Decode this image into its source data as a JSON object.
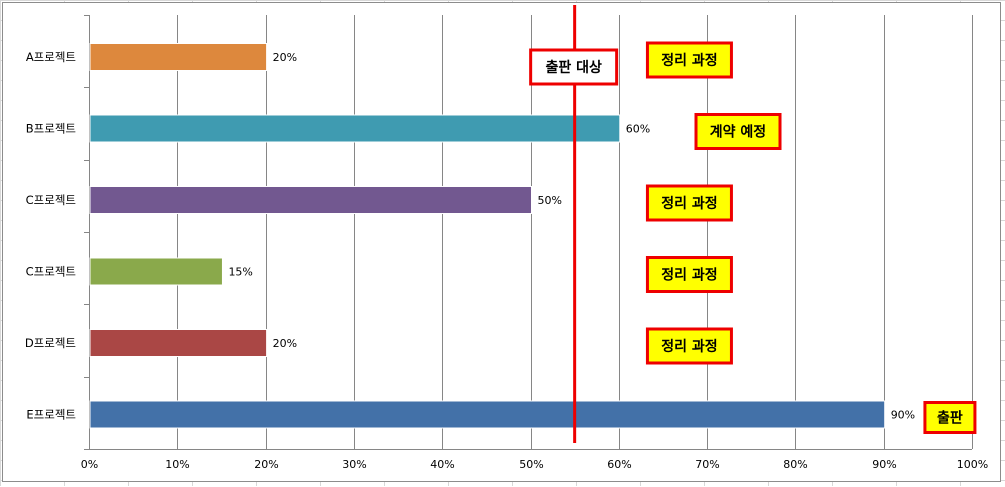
{
  "chart_data": {
    "type": "bar",
    "orientation": "horizontal",
    "categories": [
      "A프로젝트",
      "B프로젝트",
      "C프로젝트",
      "C프로젝트",
      "D프로젝트",
      "E프로젝트"
    ],
    "values": [
      0.2,
      0.6,
      0.5,
      0.15,
      0.2,
      0.9
    ],
    "value_labels": [
      "20%",
      "60%",
      "50%",
      "15%",
      "20%",
      "90%"
    ],
    "bar_colors": [
      "#dd883d",
      "#3f9bb1",
      "#725890",
      "#8aa94b",
      "#aa4745",
      "#4371a8"
    ],
    "xlim": [
      0,
      1
    ],
    "x_ticks": [
      0,
      0.1,
      0.2,
      0.3,
      0.4,
      0.5,
      0.6,
      0.7,
      0.8,
      0.9,
      1.0
    ],
    "x_tick_labels": [
      "0%",
      "10%",
      "20%",
      "30%",
      "40%",
      "50%",
      "60%",
      "70%",
      "80%",
      "90%",
      "100%"
    ],
    "grid": true,
    "legend": "none",
    "threshold": {
      "value": 0.55,
      "label": "출판 대상",
      "color": "#ee0000"
    },
    "status_tags": [
      {
        "category_index": 0,
        "label": "정리 과정",
        "at": 0.68
      },
      {
        "category_index": 1,
        "label": "계약 예정",
        "at": 0.735
      },
      {
        "category_index": 2,
        "label": "정리 과정",
        "at": 0.68
      },
      {
        "category_index": 3,
        "label": "정리 과정",
        "at": 0.68
      },
      {
        "category_index": 4,
        "label": "정리 과정",
        "at": 0.68
      },
      {
        "category_index": 5,
        "label": "출판",
        "at": 0.975
      }
    ],
    "tag_style": {
      "fill": "#ffff00",
      "border": "#ee0000",
      "text": "#000000"
    }
  }
}
